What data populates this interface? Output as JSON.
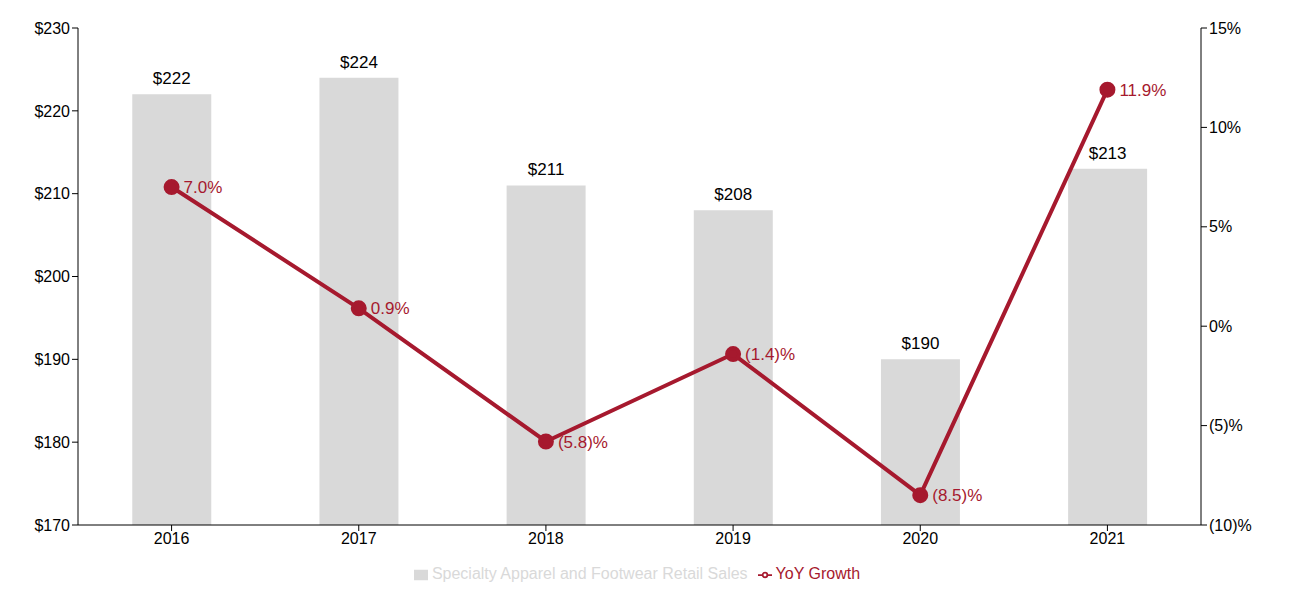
{
  "chart_data": {
    "type": "bar",
    "categories": [
      "2016",
      "2017",
      "2018",
      "2019",
      "2020",
      "2021"
    ],
    "series": [
      {
        "name": "Specialty Apparel and Footwear Retail Sales",
        "type": "bar",
        "color": "#d9d9d9",
        "values": [
          222,
          224,
          211,
          208,
          190,
          213
        ],
        "value_labels": [
          "$222",
          "$224",
          "$211",
          "$208",
          "$190",
          "$213"
        ]
      },
      {
        "name": "YoY Growth",
        "type": "line",
        "axis": "y2",
        "color": "#a6192e",
        "marker": "circle",
        "values": [
          7.0,
          0.9,
          -5.8,
          -1.4,
          -8.5,
          11.9
        ],
        "value_labels": [
          "7.0%",
          "0.9%",
          "(5.8)%",
          "(1.4)%",
          "(8.5)%",
          "11.9%"
        ]
      }
    ],
    "ylim": [
      170,
      230
    ],
    "yticks": [
      {
        "value": 170,
        "label": "$170"
      },
      {
        "value": 180,
        "label": "$180"
      },
      {
        "value": 190,
        "label": "$190"
      },
      {
        "value": 200,
        "label": "$200"
      },
      {
        "value": 210,
        "label": "$210"
      },
      {
        "value": 220,
        "label": "$220"
      },
      {
        "value": 230,
        "label": "$230"
      }
    ],
    "y2lim": [
      -10,
      15
    ],
    "y2ticks": [
      {
        "value": -10,
        "label": "(10)%"
      },
      {
        "value": -5,
        "label": "(5)%"
      },
      {
        "value": 0,
        "label": "0%"
      },
      {
        "value": 5,
        "label": "5%"
      },
      {
        "value": 10,
        "label": "10%"
      },
      {
        "value": 15,
        "label": "15%"
      }
    ],
    "grid": false,
    "legend": "bottom",
    "data_labels": true
  }
}
